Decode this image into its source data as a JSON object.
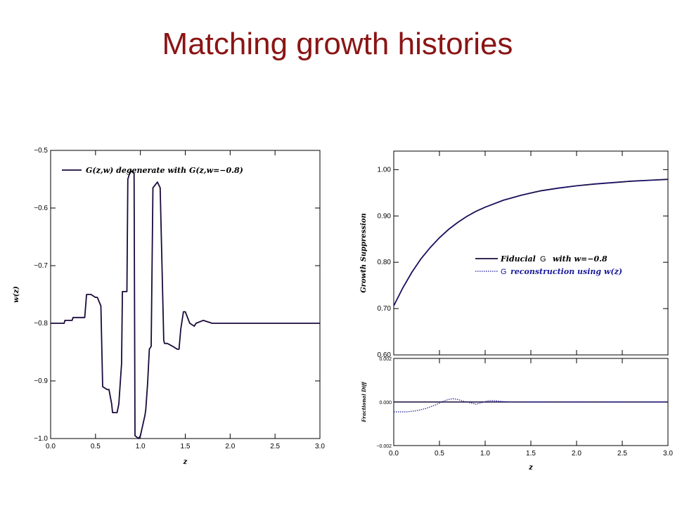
{
  "slide": {
    "title": "Matching growth histories"
  },
  "colors": {
    "title": "#8b1414",
    "line_dark": "#1a0a3a",
    "line_blue": "#1a1a9a"
  },
  "chart_data": [
    {
      "type": "line",
      "xlabel": "z",
      "ylabel": "w(z)",
      "xlim": [
        0,
        3
      ],
      "ylim": [
        -1.0,
        -0.5
      ],
      "xticks": [
        "0.0",
        "0.5",
        "1.0",
        "1.5",
        "2.0",
        "2.5",
        "3.0"
      ],
      "yticks": [
        "−0.5",
        "−0.6",
        "−0.7",
        "−0.8",
        "−0.9",
        "−1.0"
      ],
      "legend": "G(z,w) degenerate with G(z,w=−0.8)",
      "series": [
        {
          "x": [
            0.0,
            0.15,
            0.16,
            0.24,
            0.25,
            0.38,
            0.4,
            0.45,
            0.5,
            0.52,
            0.56,
            0.58,
            0.63,
            0.65,
            0.68,
            0.69,
            0.74,
            0.76,
            0.79,
            0.8,
            0.85,
            0.86,
            0.89,
            0.93,
            0.94,
            0.98,
            1.0,
            1.05,
            1.06,
            1.08,
            1.1,
            1.12,
            1.14,
            1.19,
            1.22,
            1.26,
            1.27,
            1.3,
            1.36,
            1.41,
            1.43,
            1.45,
            1.48,
            1.5,
            1.55,
            1.6,
            1.62,
            1.7,
            1.8,
            1.85,
            2.0,
            2.4,
            2.7,
            3.0
          ],
          "y": [
            -0.8,
            -0.8,
            -0.795,
            -0.795,
            -0.79,
            -0.79,
            -0.75,
            -0.75,
            -0.755,
            -0.755,
            -0.77,
            -0.91,
            -0.915,
            -0.915,
            -0.94,
            -0.955,
            -0.955,
            -0.94,
            -0.87,
            -0.745,
            -0.745,
            -0.55,
            -0.535,
            -0.54,
            -0.995,
            -1.0,
            -0.995,
            -0.96,
            -0.95,
            -0.905,
            -0.845,
            -0.84,
            -0.565,
            -0.555,
            -0.565,
            -0.83,
            -0.835,
            -0.835,
            -0.84,
            -0.845,
            -0.845,
            -0.81,
            -0.78,
            -0.78,
            -0.8,
            -0.805,
            -0.8,
            -0.795,
            -0.8,
            -0.8,
            -0.8,
            -0.8,
            -0.8,
            -0.8
          ]
        }
      ]
    },
    {
      "type": "line",
      "xlabel": "z",
      "ylabel": "Growth Suppression",
      "xlim": [
        0,
        3
      ],
      "ylim": [
        0.6,
        1.04
      ],
      "xticks": [
        "0.0",
        "0.5",
        "1.0",
        "1.5",
        "2.0",
        "2.5",
        "3.0"
      ],
      "yticks": [
        "1.00",
        "0.90",
        "0.80",
        "0.70",
        "0.60"
      ],
      "legend": [
        {
          "prefix": "Fiducial",
          "symbol": "G",
          "suffix": "with w=−0.8",
          "style": "solid"
        },
        {
          "prefix": "",
          "symbol": "G",
          "suffix": "reconstruction using w(z)",
          "style": "dotted"
        }
      ],
      "series": [
        {
          "x": [
            0.0,
            0.1,
            0.2,
            0.3,
            0.4,
            0.5,
            0.6,
            0.7,
            0.8,
            0.9,
            1.0,
            1.2,
            1.4,
            1.6,
            1.8,
            2.0,
            2.2,
            2.4,
            2.6,
            2.8,
            3.0
          ],
          "y": [
            0.706,
            0.745,
            0.779,
            0.808,
            0.832,
            0.853,
            0.871,
            0.886,
            0.899,
            0.91,
            0.919,
            0.934,
            0.945,
            0.954,
            0.96,
            0.965,
            0.969,
            0.972,
            0.975,
            0.977,
            0.979
          ]
        }
      ]
    },
    {
      "type": "line",
      "xlabel": "z",
      "ylabel": "Fractional Diff",
      "xlim": [
        0,
        3
      ],
      "ylim": [
        -0.002,
        0.002
      ],
      "xticks": [
        "0.0",
        "0.5",
        "1.0",
        "1.5",
        "2.0",
        "2.5",
        "3.0"
      ],
      "yticks": [
        "0.002",
        "0.000",
        "−0.002"
      ],
      "series": [
        {
          "style": "solid",
          "x": [
            0,
            3
          ],
          "y": [
            0,
            0
          ]
        },
        {
          "style": "dotted",
          "x": [
            0.0,
            0.15,
            0.25,
            0.35,
            0.45,
            0.5,
            0.55,
            0.6,
            0.65,
            0.7,
            0.75,
            0.8,
            0.85,
            0.9,
            0.95,
            1.0,
            1.05,
            1.1,
            1.15,
            1.2,
            1.3,
            1.5,
            3.0
          ],
          "y": [
            -0.00045,
            -0.00045,
            -0.0004,
            -0.0003,
            -0.00015,
            -5e-05,
            5e-05,
            0.00012,
            0.00015,
            0.00012,
            5e-05,
            0.0,
            -5e-05,
            -0.0001,
            -5e-05,
            2e-05,
            6e-05,
            6e-05,
            4e-05,
            2e-05,
            0.0,
            0.0,
            0.0
          ]
        }
      ]
    }
  ]
}
